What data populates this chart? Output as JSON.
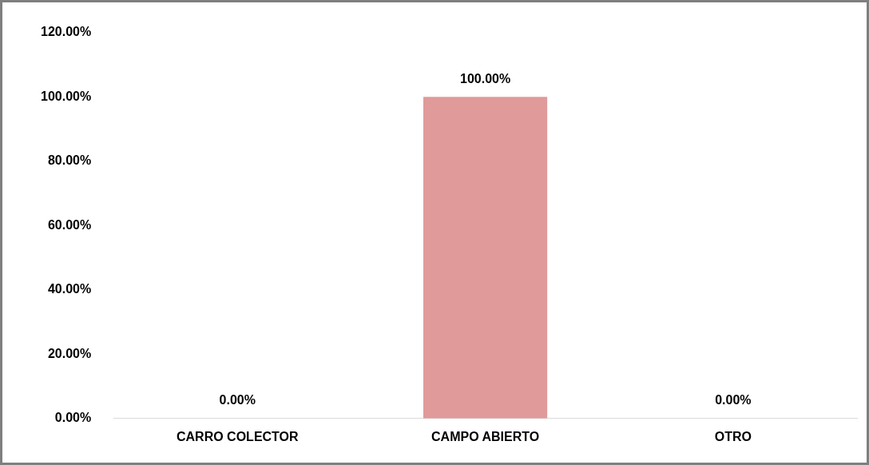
{
  "chart_data": {
    "type": "bar",
    "categories": [
      "CARRO COLECTOR",
      "CAMPO ABIERTO",
      "OTRO"
    ],
    "values": [
      0,
      100,
      0
    ],
    "color": "#e09a9a",
    "value_labels": [
      "0.00%",
      "100.00%",
      "0.00%"
    ],
    "ylim": [
      0,
      120
    ],
    "yticks": [
      {
        "value": 0,
        "label": "0.00%"
      },
      {
        "value": 20,
        "label": "20.00%"
      },
      {
        "value": 40,
        "label": "40.00%"
      },
      {
        "value": 60,
        "label": "60.00%"
      },
      {
        "value": 80,
        "label": "80.00%"
      },
      {
        "value": 100,
        "label": "100.00%"
      },
      {
        "value": 120,
        "label": "120.00%"
      }
    ],
    "grid": false
  }
}
